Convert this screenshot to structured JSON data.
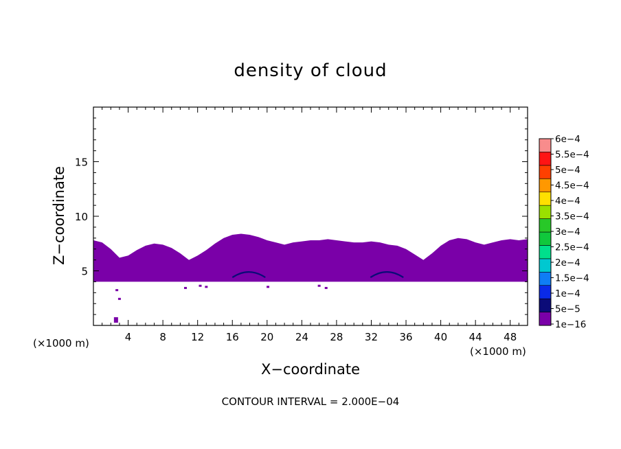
{
  "chart_data": {
    "type": "heatmap",
    "title": "density of cloud",
    "xlabel": "X−coordinate",
    "ylabel": "Z−coordinate",
    "x_unit": "(×1000 m)",
    "y_unit": "(×1000 m)",
    "xlim": [
      0,
      50
    ],
    "ylim": [
      0,
      20
    ],
    "x_ticks": [
      4,
      8,
      12,
      16,
      20,
      24,
      28,
      32,
      36,
      40,
      44,
      48
    ],
    "y_ticks": [
      5,
      10,
      15
    ],
    "footer": "CONTOUR INTERVAL = 2.000E−04",
    "colorbar": {
      "levels": [
        "1e−16",
        "5e−5",
        "1e−4",
        "1.5e−4",
        "2e−4",
        "2.5e−4",
        "3e−4",
        "3.5e−4",
        "4e−4",
        "4.5e−4",
        "5e−4",
        "5.5e−4",
        "6e−4"
      ],
      "colors": [
        "#7a00a8",
        "#0b0b78",
        "#0a2ae8",
        "#0f7df5",
        "#00c8d0",
        "#00e08c",
        "#10c83c",
        "#28c828",
        "#9ae000",
        "#ffe000",
        "#ff9800",
        "#ff4000",
        "#ff1414",
        "#f88c8c"
      ]
    },
    "cloud_layer": {
      "base_km": 4.0,
      "fill_color": "#7a00a8",
      "top_profile": {
        "x_km": [
          0,
          1,
          2,
          3,
          4,
          5,
          6,
          7,
          8,
          9,
          10,
          11,
          12,
          13,
          14,
          15,
          16,
          17,
          18,
          19,
          20,
          21,
          22,
          23,
          24,
          25,
          26,
          27,
          28,
          29,
          30,
          31,
          32,
          33,
          34,
          35,
          36,
          37,
          38,
          39,
          40,
          41,
          42,
          43,
          44,
          45,
          46,
          47,
          48,
          49,
          50
        ],
        "z_km": [
          7.8,
          7.6,
          7.0,
          6.2,
          6.4,
          6.9,
          7.3,
          7.5,
          7.4,
          7.1,
          6.6,
          6.0,
          6.4,
          6.9,
          7.5,
          8.0,
          8.3,
          8.4,
          8.3,
          8.1,
          7.8,
          7.6,
          7.4,
          7.6,
          7.7,
          7.8,
          7.8,
          7.9,
          7.8,
          7.7,
          7.6,
          7.6,
          7.7,
          7.6,
          7.4,
          7.3,
          7.0,
          6.5,
          6.0,
          6.6,
          7.3,
          7.8,
          8.0,
          7.9,
          7.6,
          7.4,
          7.6,
          7.8,
          7.9,
          7.8,
          7.9
        ]
      },
      "arcs": [
        {
          "x_km": 17.9,
          "z_km": 4.9,
          "color": "#0b0b78"
        },
        {
          "x_km": 33.8,
          "z_km": 4.9,
          "color": "#0b0b78"
        }
      ],
      "fragments": [
        {
          "x_km": 2.7,
          "z_km": 3.2
        },
        {
          "x_km": 3.0,
          "z_km": 2.4
        },
        {
          "x_km": 2.6,
          "z_km": 0.5
        },
        {
          "x_km": 10.6,
          "z_km": 3.4
        },
        {
          "x_km": 12.3,
          "z_km": 3.6
        },
        {
          "x_km": 13.0,
          "z_km": 3.5
        },
        {
          "x_km": 20.1,
          "z_km": 3.5
        },
        {
          "x_km": 26.8,
          "z_km": 3.4
        },
        {
          "x_km": 26.0,
          "z_km": 3.6
        }
      ]
    }
  }
}
